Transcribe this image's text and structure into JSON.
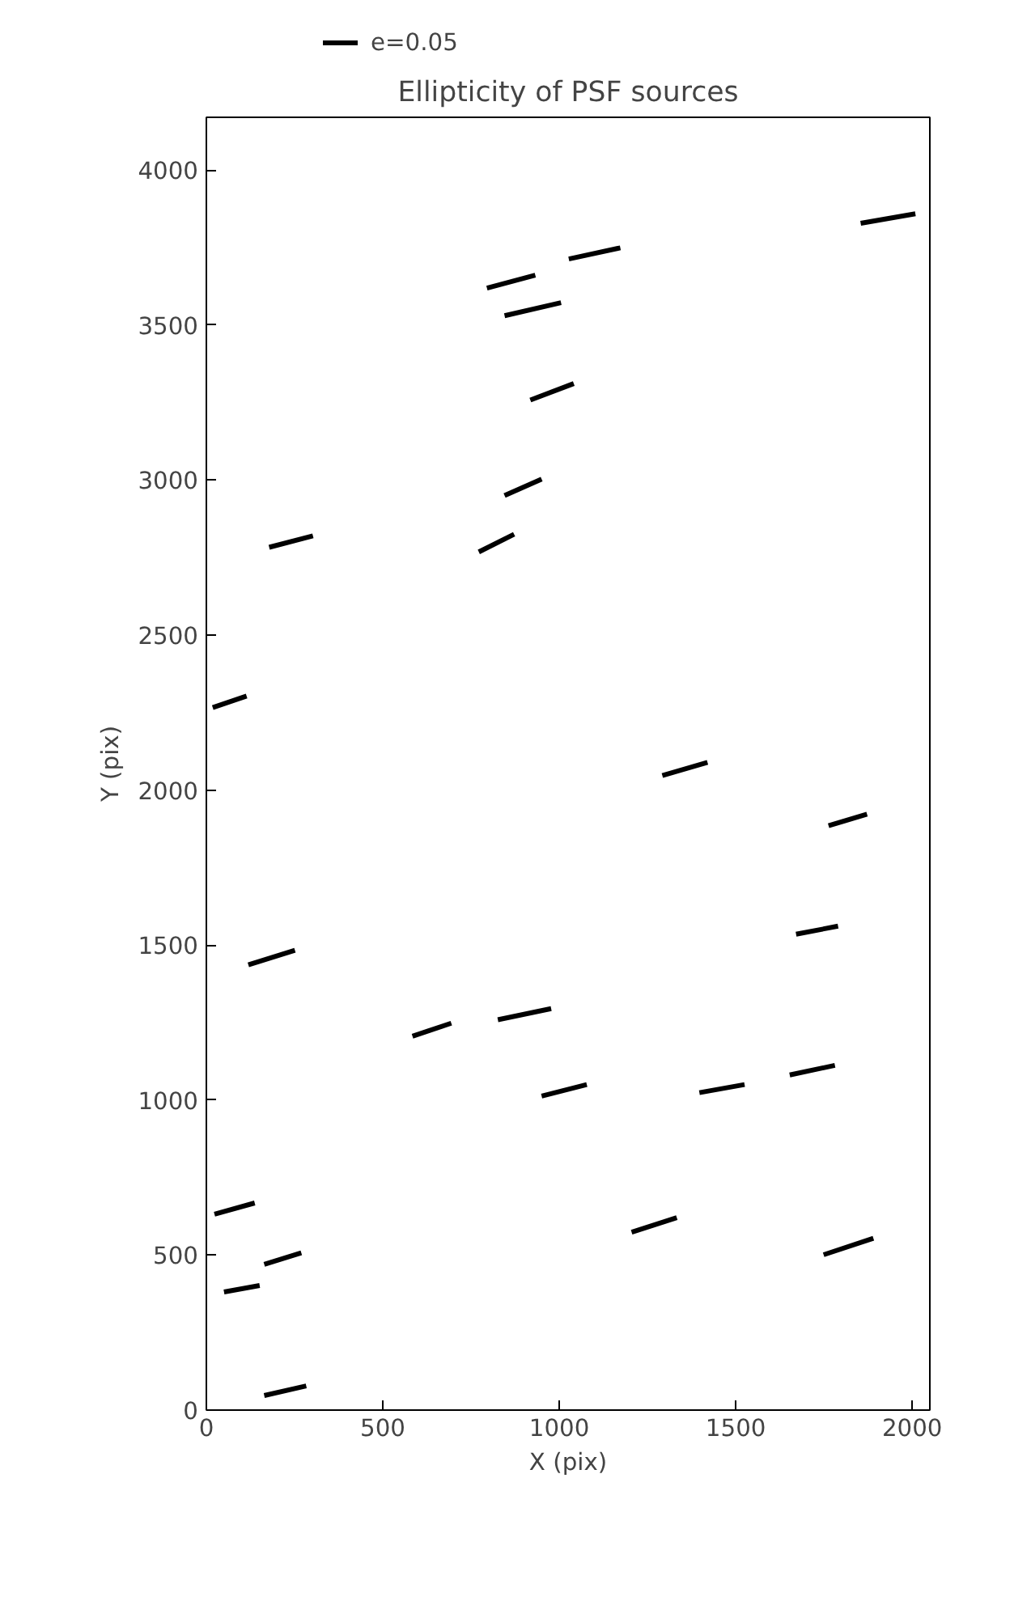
{
  "chart_data": {
    "type": "line",
    "title": "Ellipticity of PSF sources",
    "xlabel": "X (pix)",
    "ylabel": "Y (pix)",
    "annotations": [
      "e=0.05"
    ],
    "xlim": [
      0,
      2050
    ],
    "ylim": [
      0,
      4170
    ],
    "xticks": [
      0,
      500,
      1000,
      1500,
      2000
    ],
    "yticks": [
      0,
      500,
      1000,
      1500,
      2000,
      2500,
      3000,
      3500,
      4000
    ],
    "grid": false,
    "series": [
      {
        "color": "#000000",
        "x": [
          795,
          932
        ],
        "values": [
          3619,
          3661
        ]
      },
      {
        "color": "#000000",
        "x": [
          1027,
          1173
        ],
        "values": [
          3713,
          3749
        ]
      },
      {
        "color": "#000000",
        "x": [
          845,
          1005
        ],
        "values": [
          3530,
          3572
        ]
      },
      {
        "color": "#000000",
        "x": [
          918,
          1041
        ],
        "values": [
          3258,
          3311
        ]
      },
      {
        "color": "#000000",
        "x": [
          845,
          950
        ],
        "values": [
          2950,
          3003
        ]
      },
      {
        "color": "#000000",
        "x": [
          772,
          872
        ],
        "values": [
          2768,
          2825
        ]
      },
      {
        "color": "#000000",
        "x": [
          178,
          302
        ],
        "values": [
          2783,
          2820
        ]
      },
      {
        "color": "#000000",
        "x": [
          18,
          114
        ],
        "values": [
          2266,
          2303
        ]
      },
      {
        "color": "#000000",
        "x": [
          1854,
          2009
        ],
        "values": [
          3828,
          3859
        ]
      },
      {
        "color": "#000000",
        "x": [
          1292,
          1420
        ],
        "values": [
          2047,
          2089
        ]
      },
      {
        "color": "#000000",
        "x": [
          1763,
          1872
        ],
        "values": [
          1885,
          1922
        ]
      },
      {
        "color": "#000000",
        "x": [
          1671,
          1790
        ],
        "values": [
          1535,
          1561
        ]
      },
      {
        "color": "#000000",
        "x": [
          119,
          251
        ],
        "values": [
          1436,
          1483
        ]
      },
      {
        "color": "#000000",
        "x": [
          584,
          694
        ],
        "values": [
          1206,
          1248
        ]
      },
      {
        "color": "#000000",
        "x": [
          826,
          977
        ],
        "values": [
          1259,
          1295
        ]
      },
      {
        "color": "#000000",
        "x": [
          950,
          1078
        ],
        "values": [
          1013,
          1050
        ]
      },
      {
        "color": "#000000",
        "x": [
          1397,
          1525
        ],
        "values": [
          1024,
          1050
        ]
      },
      {
        "color": "#000000",
        "x": [
          1653,
          1781
        ],
        "values": [
          1081,
          1112
        ]
      },
      {
        "color": "#000000",
        "x": [
          23,
          137
        ],
        "values": [
          632,
          668
        ]
      },
      {
        "color": "#000000",
        "x": [
          164,
          269
        ],
        "values": [
          470,
          507
        ]
      },
      {
        "color": "#000000",
        "x": [
          50,
          151
        ],
        "values": [
          381,
          402
        ]
      },
      {
        "color": "#000000",
        "x": [
          1205,
          1333
        ],
        "values": [
          574,
          621
        ]
      },
      {
        "color": "#000000",
        "x": [
          1749,
          1890
        ],
        "values": [
          501,
          554
        ]
      },
      {
        "color": "#000000",
        "x": [
          164,
          283
        ],
        "values": [
          47,
          78
        ]
      }
    ]
  }
}
